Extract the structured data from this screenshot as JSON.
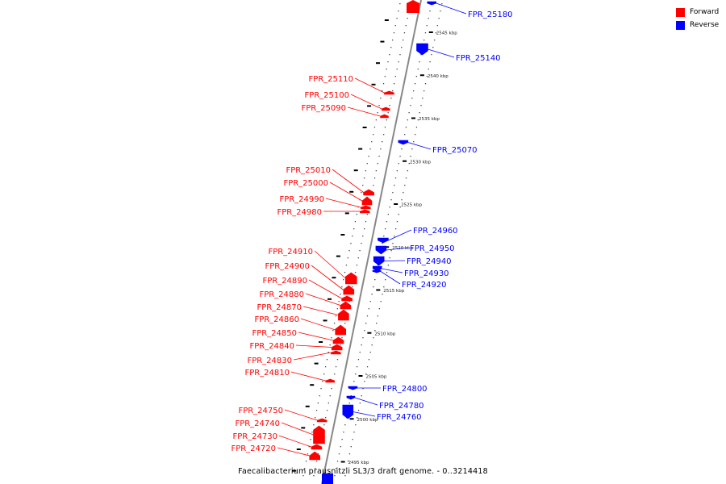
{
  "legend": {
    "forward_label": "Forward",
    "reverse_label": "Reverse"
  },
  "colors": {
    "forward": "#ff0000",
    "reverse": "#0000ff",
    "axis": "#888888"
  },
  "caption": "Faecalibacterium prausnitzii SL3/3 draft genome. - 0..3214418",
  "scale": {
    "ticks": [
      {
        "kbp": 2545,
        "label": "2545 kbp"
      },
      {
        "kbp": 2540,
        "label": "2540 kbp"
      },
      {
        "kbp": 2535,
        "label": "2535 kbp"
      },
      {
        "kbp": 2530,
        "label": "2530 kbp"
      },
      {
        "kbp": 2525,
        "label": "2525 kbp"
      },
      {
        "kbp": 2520,
        "label": "2520 kbp"
      },
      {
        "kbp": 2515,
        "label": "2515 kbp"
      },
      {
        "kbp": 2510,
        "label": "2510 kbp"
      },
      {
        "kbp": 2505,
        "label": "2505 kbp"
      },
      {
        "kbp": 2500,
        "label": "2500 kbp"
      },
      {
        "kbp": 2495,
        "label": "2495 kbp"
      }
    ]
  },
  "genes": [
    {
      "name": "FPR_25180",
      "strand": "reverse"
    },
    {
      "name": "FPR_25140",
      "strand": "reverse"
    },
    {
      "name": "FPR_25110",
      "strand": "forward"
    },
    {
      "name": "FPR_25100",
      "strand": "forward"
    },
    {
      "name": "FPR_25090",
      "strand": "forward"
    },
    {
      "name": "FPR_25070",
      "strand": "reverse"
    },
    {
      "name": "FPR_25010",
      "strand": "forward"
    },
    {
      "name": "FPR_25000",
      "strand": "forward"
    },
    {
      "name": "FPR_24990",
      "strand": "forward"
    },
    {
      "name": "FPR_24980",
      "strand": "forward"
    },
    {
      "name": "FPR_24960",
      "strand": "reverse"
    },
    {
      "name": "FPR_24950",
      "strand": "reverse"
    },
    {
      "name": "FPR_24940",
      "strand": "reverse"
    },
    {
      "name": "FPR_24930",
      "strand": "reverse"
    },
    {
      "name": "FPR_24920",
      "strand": "reverse"
    },
    {
      "name": "FPR_24910",
      "strand": "forward"
    },
    {
      "name": "FPR_24900",
      "strand": "forward"
    },
    {
      "name": "FPR_24890",
      "strand": "forward"
    },
    {
      "name": "FPR_24880",
      "strand": "forward"
    },
    {
      "name": "FPR_24870",
      "strand": "forward"
    },
    {
      "name": "FPR_24860",
      "strand": "forward"
    },
    {
      "name": "FPR_24850",
      "strand": "forward"
    },
    {
      "name": "FPR_24840",
      "strand": "forward"
    },
    {
      "name": "FPR_24830",
      "strand": "forward"
    },
    {
      "name": "FPR_24810",
      "strand": "forward"
    },
    {
      "name": "FPR_24800",
      "strand": "reverse"
    },
    {
      "name": "FPR_24780",
      "strand": "reverse"
    },
    {
      "name": "FPR_24760",
      "strand": "reverse"
    },
    {
      "name": "FPR_24750",
      "strand": "forward"
    },
    {
      "name": "FPR_24740",
      "strand": "forward"
    },
    {
      "name": "FPR_24730",
      "strand": "forward"
    },
    {
      "name": "FPR_24720",
      "strand": "forward"
    }
  ]
}
